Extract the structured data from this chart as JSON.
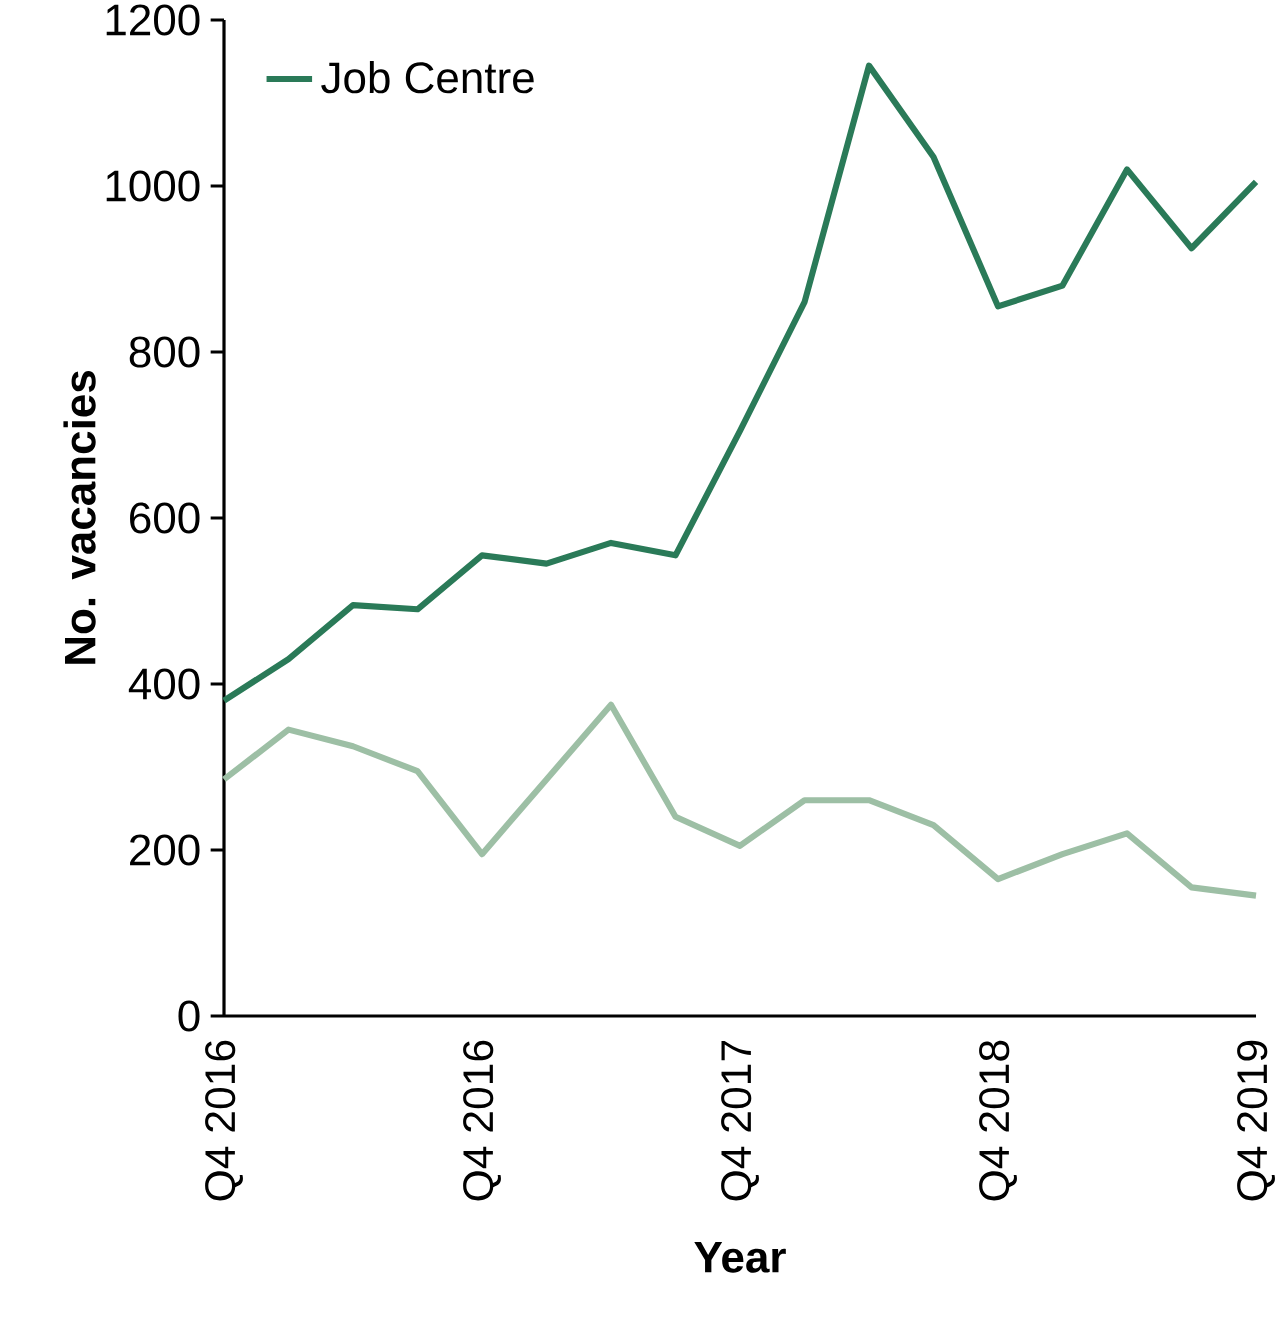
{
  "chart_data": {
    "type": "line",
    "xlabel": "Year",
    "ylabel": "No. vacancies",
    "categories": [
      "Q4 2016",
      null,
      null,
      null,
      "Q4 2016",
      null,
      null,
      null,
      "Q4 2017",
      null,
      null,
      null,
      "Q4 2018",
      null,
      null,
      null,
      "Q4 2019"
    ],
    "series": [
      {
        "name": "Job Centre",
        "color": "#2a7a58",
        "values": [
          380,
          430,
          495,
          490,
          555,
          545,
          570,
          555,
          705,
          860,
          1145,
          1035,
          855,
          880,
          1020,
          925,
          1005
        ]
      },
      {
        "color": "#9dbfa5",
        "values": [
          285,
          345,
          325,
          295,
          195,
          285,
          375,
          240,
          205,
          260,
          260,
          230,
          165,
          195,
          220,
          155,
          145
        ]
      }
    ],
    "ylim": [
      0,
      1200
    ],
    "yticks": [
      0,
      200,
      400,
      600,
      800,
      1000,
      1200
    ],
    "legend": "top left",
    "grid": false,
    "marker": "none",
    "line_style": "solid"
  }
}
